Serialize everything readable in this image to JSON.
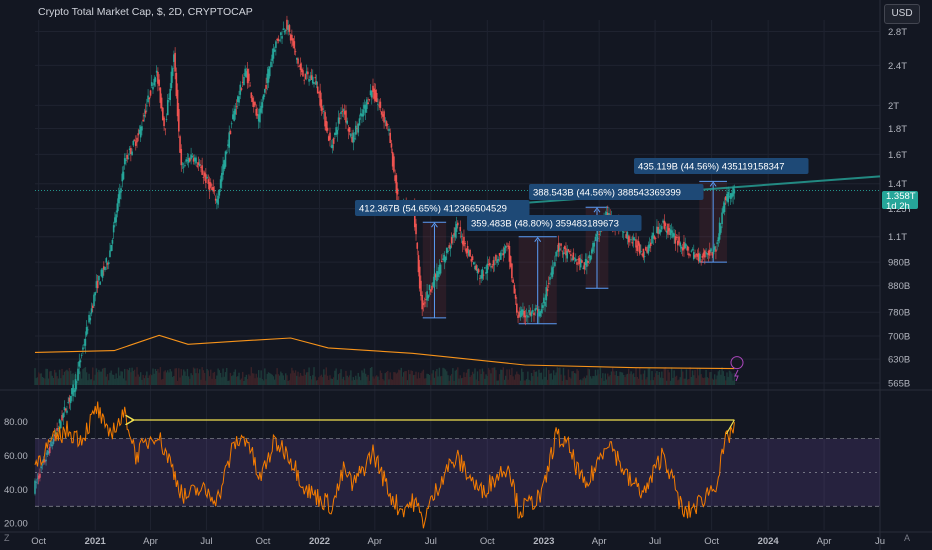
{
  "header": {
    "title": "Crypto Total Market Cap, $, 2D, CRYPTOCAP",
    "currency_button": "USD"
  },
  "price_tag": {
    "value": "1.358T",
    "countdown": "1d 2h"
  },
  "colors": {
    "background": "#131722",
    "up": "#26a69a",
    "down": "#ef5350",
    "volume_ma": "#f7931a",
    "rsi_line": "#f57c00",
    "rsi_band": "#7e57c2",
    "label_bg": "#1e4976",
    "trendline": "#26a69a",
    "arrow_line": "#f0e050"
  },
  "footer": {
    "left_badge": "Z",
    "right_badge": "A"
  },
  "chart_data": [
    {
      "type": "candlestick",
      "title": "Crypto Total Market Cap, $, 2D, CRYPTOCAP",
      "y_scale": "log",
      "ylim": [
        560,
        2950
      ],
      "y_unit": "B",
      "y_tick_labels": [
        "2.8T",
        "2.4T",
        "2T",
        "1.8T",
        "1.6T",
        "1.4T",
        "1.25T",
        "1.1T",
        "980B",
        "880B",
        "780B",
        "700B",
        "630B",
        "565B"
      ],
      "y_tick_values": [
        2800,
        2400,
        2000,
        1800,
        1600,
        1400,
        1250,
        1100,
        980,
        880,
        780,
        700,
        630,
        565
      ],
      "x_tick_labels": [
        "Oct",
        "2021",
        "Apr",
        "Jul",
        "Oct",
        "2022",
        "Apr",
        "Jul",
        "Oct",
        "2023",
        "Apr",
        "Jul",
        "Oct",
        "2024",
        "Apr",
        "Ju"
      ],
      "x_tick_dates": [
        "2020-10-01",
        "2021-01-01",
        "2021-04-01",
        "2021-07-01",
        "2021-10-01",
        "2022-01-01",
        "2022-04-01",
        "2022-07-01",
        "2022-10-01",
        "2023-01-01",
        "2023-04-01",
        "2023-07-01",
        "2023-10-01",
        "2024-01-01",
        "2024-04-01",
        "2024-07-01"
      ],
      "x_range": [
        "2020-09-25",
        "2024-07-01"
      ],
      "close_path": [
        {
          "date": "2020-09-25",
          "close": 350
        },
        {
          "date": "2020-12-01",
          "close": 560
        },
        {
          "date": "2021-01-05",
          "close": 880
        },
        {
          "date": "2021-01-25",
          "close": 1000
        },
        {
          "date": "2021-02-20",
          "close": 1550
        },
        {
          "date": "2021-03-15",
          "close": 1750
        },
        {
          "date": "2021-04-12",
          "close": 2350
        },
        {
          "date": "2021-04-26",
          "close": 1800
        },
        {
          "date": "2021-05-11",
          "close": 2500
        },
        {
          "date": "2021-05-23",
          "close": 1500
        },
        {
          "date": "2021-06-10",
          "close": 1600
        },
        {
          "date": "2021-07-20",
          "close": 1300
        },
        {
          "date": "2021-08-15",
          "close": 1900
        },
        {
          "date": "2021-09-05",
          "close": 2350
        },
        {
          "date": "2021-09-25",
          "close": 1850
        },
        {
          "date": "2021-10-20",
          "close": 2600
        },
        {
          "date": "2021-11-10",
          "close": 2900
        },
        {
          "date": "2021-12-05",
          "close": 2300
        },
        {
          "date": "2021-12-27",
          "close": 2250
        },
        {
          "date": "2022-01-22",
          "close": 1650
        },
        {
          "date": "2022-02-10",
          "close": 2000
        },
        {
          "date": "2022-02-24",
          "close": 1700
        },
        {
          "date": "2022-03-29",
          "close": 2150
        },
        {
          "date": "2022-04-25",
          "close": 1800
        },
        {
          "date": "2022-05-12",
          "close": 1250
        },
        {
          "date": "2022-06-05",
          "close": 1250
        },
        {
          "date": "2022-06-18",
          "close": 800
        },
        {
          "date": "2022-07-25",
          "close": 1000
        },
        {
          "date": "2022-08-14",
          "close": 1150
        },
        {
          "date": "2022-09-20",
          "close": 920
        },
        {
          "date": "2022-11-05",
          "close": 1050
        },
        {
          "date": "2022-11-21",
          "close": 770
        },
        {
          "date": "2022-12-30",
          "close": 780
        },
        {
          "date": "2023-01-25",
          "close": 1050
        },
        {
          "date": "2023-03-10",
          "close": 960
        },
        {
          "date": "2023-04-15",
          "close": 1220
        },
        {
          "date": "2023-05-20",
          "close": 1100
        },
        {
          "date": "2023-06-15",
          "close": 1020
        },
        {
          "date": "2023-07-14",
          "close": 1170
        },
        {
          "date": "2023-08-17",
          "close": 1050
        },
        {
          "date": "2023-09-11",
          "close": 1000
        },
        {
          "date": "2023-10-10",
          "close": 1040
        },
        {
          "date": "2023-10-24",
          "close": 1300
        },
        {
          "date": "2023-11-07",
          "close": 1358
        }
      ],
      "measurement_labels": [
        "412.367B (54.65%) 412366504529",
        "359.483B (48.80%) 359483189673",
        "388.543B (44.56%) 388543369399",
        "435.119B (44.56%) 435119158347"
      ],
      "measurement_ranges": [
        {
          "start": "2022-06-18",
          "end": "2022-07-26",
          "low": 760,
          "high": 1175
        },
        {
          "start": "2022-11-21",
          "end": "2023-01-22",
          "low": 740,
          "high": 1100
        },
        {
          "start": "2023-03-10",
          "end": "2023-04-16",
          "low": 870,
          "high": 1258
        },
        {
          "start": "2023-09-11",
          "end": "2023-10-26",
          "low": 980,
          "high": 1415
        }
      ],
      "trendline": {
        "start_date": "2022-07-30",
        "start_value": 1250,
        "end_date": "2024-07-01",
        "end_value": 1448
      },
      "last_value": 1358
    },
    {
      "type": "line",
      "series": [
        {
          "values_by_date": [
            {
              "date": "2020-09-25",
              "value": 34
            },
            {
              "date": "2021-02-01",
              "value": 36
            },
            {
              "date": "2021-04-15",
              "value": 53
            },
            {
              "date": "2021-06-01",
              "value": 43
            },
            {
              "date": "2021-09-01",
              "value": 47
            },
            {
              "date": "2021-11-15",
              "value": 50
            },
            {
              "date": "2022-01-15",
              "value": 39
            },
            {
              "date": "2022-06-01",
              "value": 33
            },
            {
              "date": "2022-12-01",
              "value": 20
            },
            {
              "date": "2023-06-01",
              "value": 17
            },
            {
              "date": "2023-11-07",
              "value": 16
            }
          ]
        }
      ]
    },
    {
      "type": "line",
      "y_tick_labels": [
        "80.00",
        "60.00",
        "40.00",
        "20.00"
      ],
      "y_tick_values": [
        80,
        60,
        40,
        20
      ],
      "ylim": [
        16,
        94
      ],
      "band": [
        30,
        70
      ],
      "band_midline": 50,
      "series": [
        {
          "values_by_date": [
            {
              "date": "2020-09-25",
              "value": 55
            },
            {
              "date": "2020-10-20",
              "value": 67
            },
            {
              "date": "2020-11-15",
              "value": 75
            },
            {
              "date": "2020-12-10",
              "value": 70
            },
            {
              "date": "2021-01-05",
              "value": 88
            },
            {
              "date": "2021-01-20",
              "value": 72
            },
            {
              "date": "2021-02-20",
              "value": 84
            },
            {
              "date": "2021-03-08",
              "value": 60
            },
            {
              "date": "2021-04-10",
              "value": 74
            },
            {
              "date": "2021-05-01",
              "value": 58
            },
            {
              "date": "2021-05-25",
              "value": 35
            },
            {
              "date": "2021-06-20",
              "value": 40
            },
            {
              "date": "2021-07-20",
              "value": 35
            },
            {
              "date": "2021-08-15",
              "value": 67
            },
            {
              "date": "2021-09-05",
              "value": 71
            },
            {
              "date": "2021-09-25",
              "value": 45
            },
            {
              "date": "2021-10-20",
              "value": 68
            },
            {
              "date": "2021-11-10",
              "value": 62
            },
            {
              "date": "2021-12-10",
              "value": 40
            },
            {
              "date": "2022-01-22",
              "value": 30
            },
            {
              "date": "2022-02-10",
              "value": 52
            },
            {
              "date": "2022-02-24",
              "value": 42
            },
            {
              "date": "2022-03-29",
              "value": 62
            },
            {
              "date": "2022-04-25",
              "value": 38
            },
            {
              "date": "2022-05-12",
              "value": 28
            },
            {
              "date": "2022-06-05",
              "value": 33
            },
            {
              "date": "2022-06-18",
              "value": 21
            },
            {
              "date": "2022-07-25",
              "value": 52
            },
            {
              "date": "2022-08-14",
              "value": 58
            },
            {
              "date": "2022-09-20",
              "value": 38
            },
            {
              "date": "2022-11-05",
              "value": 55
            },
            {
              "date": "2022-11-21",
              "value": 27
            },
            {
              "date": "2022-12-30",
              "value": 37
            },
            {
              "date": "2023-01-20",
              "value": 72
            },
            {
              "date": "2023-02-10",
              "value": 65
            },
            {
              "date": "2023-03-10",
              "value": 40
            },
            {
              "date": "2023-04-15",
              "value": 70
            },
            {
              "date": "2023-05-20",
              "value": 45
            },
            {
              "date": "2023-06-15",
              "value": 38
            },
            {
              "date": "2023-07-14",
              "value": 62
            },
            {
              "date": "2023-08-17",
              "value": 25
            },
            {
              "date": "2023-09-11",
              "value": 32
            },
            {
              "date": "2023-10-10",
              "value": 45
            },
            {
              "date": "2023-10-24",
              "value": 68
            },
            {
              "date": "2023-11-07",
              "value": 78
            }
          ]
        }
      ],
      "annotation_arrow": {
        "from_date": "2023-11-07",
        "from_value": 81,
        "to_date": "2021-03-01",
        "to_value": 81
      }
    }
  ]
}
